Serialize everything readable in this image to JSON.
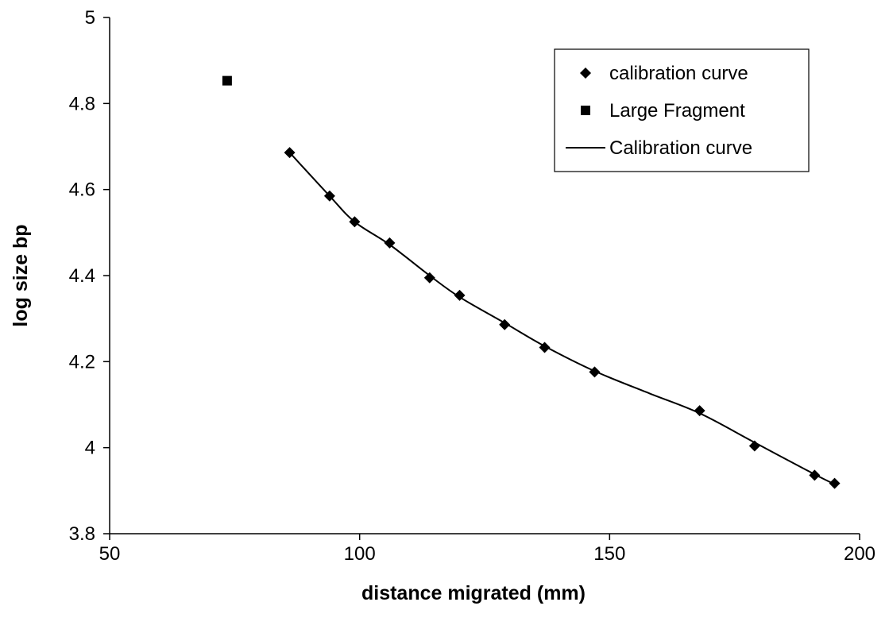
{
  "chart_data": {
    "type": "scatter",
    "title": "",
    "xlabel": "distance migrated (mm)",
    "ylabel": "log size bp",
    "xlim": [
      50,
      200
    ],
    "ylim": [
      3.8,
      5
    ],
    "xticks": [
      50,
      100,
      150,
      200
    ],
    "yticks": [
      3.8,
      4,
      4.2,
      4.4,
      4.6,
      4.8,
      5
    ],
    "xtick_labels": [
      "50",
      "100",
      "150",
      "200"
    ],
    "ytick_labels": [
      "3.8",
      "4",
      "4.2",
      "4.4",
      "4.6",
      "4.8",
      "5"
    ],
    "grid": false,
    "legend_position": "top-right",
    "series": [
      {
        "name": "calibration curve",
        "kind": "scatter",
        "marker": "diamond",
        "color": "#000000",
        "points": [
          {
            "x": 86,
            "y": 4.686
          },
          {
            "x": 94,
            "y": 4.585
          },
          {
            "x": 99,
            "y": 4.525
          },
          {
            "x": 106,
            "y": 4.476
          },
          {
            "x": 114,
            "y": 4.395
          },
          {
            "x": 120,
            "y": 4.354
          },
          {
            "x": 129,
            "y": 4.286
          },
          {
            "x": 137,
            "y": 4.233
          },
          {
            "x": 147,
            "y": 4.176
          },
          {
            "x": 168,
            "y": 4.086
          },
          {
            "x": 179,
            "y": 4.004
          },
          {
            "x": 191,
            "y": 3.936
          },
          {
            "x": 195,
            "y": 3.917
          }
        ]
      },
      {
        "name": "Large Fragment",
        "kind": "scatter",
        "marker": "square",
        "color": "#000000",
        "points": [
          {
            "x": 73.5,
            "y": 4.853
          }
        ]
      },
      {
        "name": "Calibration curve",
        "kind": "line",
        "color": "#000000",
        "points": [
          {
            "x": 86,
            "y": 4.686
          },
          {
            "x": 94,
            "y": 4.585
          },
          {
            "x": 99,
            "y": 4.525
          },
          {
            "x": 106,
            "y": 4.472
          },
          {
            "x": 114,
            "y": 4.4
          },
          {
            "x": 120,
            "y": 4.35
          },
          {
            "x": 129,
            "y": 4.29
          },
          {
            "x": 137,
            "y": 4.236
          },
          {
            "x": 147,
            "y": 4.178
          },
          {
            "x": 158,
            "y": 4.126
          },
          {
            "x": 168,
            "y": 4.08
          },
          {
            "x": 179,
            "y": 4.012
          },
          {
            "x": 191,
            "y": 3.938
          },
          {
            "x": 195,
            "y": 3.915
          }
        ]
      }
    ]
  }
}
